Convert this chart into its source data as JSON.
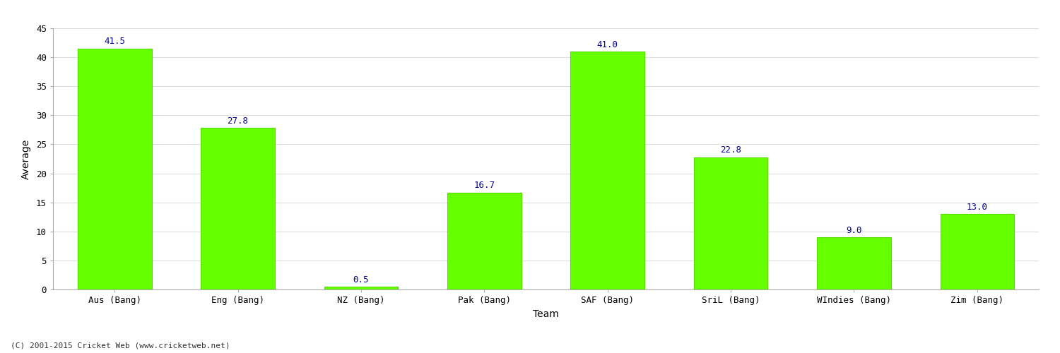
{
  "categories": [
    "Aus (Bang)",
    "Eng (Bang)",
    "NZ (Bang)",
    "Pak (Bang)",
    "SAF (Bang)",
    "SriL (Bang)",
    "WIndies (Bang)",
    "Zim (Bang)"
  ],
  "values": [
    41.5,
    27.8,
    0.5,
    16.7,
    41.0,
    22.8,
    9.0,
    13.0
  ],
  "bar_color": "#66ff00",
  "bar_edge_color": "#55dd00",
  "label_color": "#000099",
  "title": "",
  "ylabel": "Average",
  "xlabel": "Team",
  "ylim": [
    0,
    45
  ],
  "yticks": [
    0,
    5,
    10,
    15,
    20,
    25,
    30,
    35,
    40,
    45
  ],
  "grid_color": "#dddddd",
  "background_color": "#ffffff",
  "fig_background_color": "#ffffff",
  "footer_text": "(C) 2001-2015 Cricket Web (www.cricketweb.net)",
  "label_fontsize": 9,
  "axis_label_fontsize": 10,
  "tick_fontsize": 9,
  "bar_width": 0.6
}
